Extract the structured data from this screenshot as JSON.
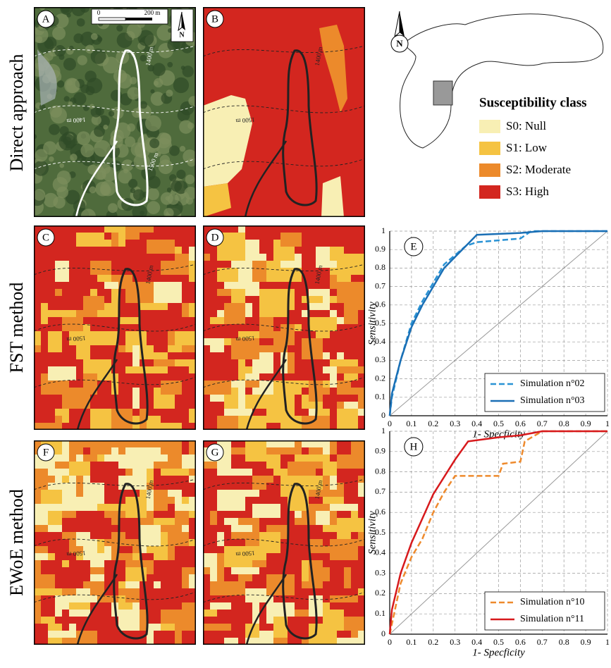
{
  "row_labels": [
    "Direct approach",
    "FST method",
    "EWoE method"
  ],
  "maps": [
    {
      "letter": "A",
      "contours": [
        "1400 m",
        "1400 m",
        "1500 m"
      ]
    },
    {
      "letter": "B",
      "contours": [
        "1400 m",
        "1500 m"
      ]
    },
    {
      "letter": "C",
      "contours": [
        "1400 m",
        "1500 m"
      ]
    },
    {
      "letter": "D",
      "contours": [
        "1400 m",
        "1500 m"
      ]
    },
    {
      "letter": "F",
      "contours": [
        "1400 m",
        "1500 m"
      ]
    },
    {
      "letter": "G",
      "contours": [
        "1400 m",
        "1500 m"
      ]
    }
  ],
  "scale_bar": {
    "start": "0",
    "end": "200 m"
  },
  "north": "N",
  "locator_north": "N",
  "legend": {
    "title": "Susceptibility class",
    "items": [
      {
        "label": "S0: Null",
        "color": "#f8efb4"
      },
      {
        "label": "S1: Low",
        "color": "#f5c342"
      },
      {
        "label": "S2: Moderate",
        "color": "#ec8a2b"
      },
      {
        "label": "S3: High",
        "color": "#d3261f"
      }
    ]
  },
  "chart_data": [
    {
      "type": "line",
      "panel": "E",
      "xlabel": "1- Specficity",
      "ylabel": "Sensitivity",
      "xlim": [
        0,
        1
      ],
      "ylim": [
        0,
        1
      ],
      "xticks": [
        0,
        0.1,
        0.2,
        0.3,
        0.4,
        0.5,
        0.6,
        0.7,
        0.8,
        0.9,
        1
      ],
      "yticks": [
        0,
        0.1,
        0.2,
        0.3,
        0.4,
        0.5,
        0.6,
        0.7,
        0.8,
        0.9,
        1
      ],
      "grid": true,
      "legend": "lower right",
      "series": [
        {
          "name": "Simulation n°02",
          "color": "#2a93d5",
          "style": "dashed",
          "x": [
            0,
            0.01,
            0.05,
            0.1,
            0.15,
            0.2,
            0.25,
            0.3,
            0.35,
            0.4,
            0.5,
            0.6,
            0.65,
            1
          ],
          "values": [
            0,
            0.1,
            0.3,
            0.5,
            0.62,
            0.72,
            0.82,
            0.87,
            0.92,
            0.94,
            0.95,
            0.96,
            1,
            1
          ]
        },
        {
          "name": "Simulation n°03",
          "color": "#1a6fb5",
          "style": "solid",
          "x": [
            0,
            0.01,
            0.05,
            0.1,
            0.15,
            0.2,
            0.25,
            0.3,
            0.35,
            0.4,
            0.6,
            0.7,
            1
          ],
          "values": [
            0,
            0.12,
            0.3,
            0.48,
            0.6,
            0.7,
            0.8,
            0.86,
            0.92,
            0.98,
            0.99,
            1,
            1
          ]
        }
      ]
    },
    {
      "type": "line",
      "panel": "H",
      "xlabel": "1- Specficity",
      "ylabel": "Sensitivity",
      "xlim": [
        0,
        1
      ],
      "ylim": [
        0,
        1
      ],
      "xticks": [
        0,
        0.1,
        0.2,
        0.3,
        0.4,
        0.5,
        0.6,
        0.7,
        0.8,
        0.9,
        1
      ],
      "yticks": [
        0,
        0.1,
        0.2,
        0.3,
        0.4,
        0.5,
        0.6,
        0.7,
        0.8,
        0.9,
        1
      ],
      "grid": true,
      "legend": "lower right",
      "series": [
        {
          "name": "Simulation n°10",
          "color": "#ee8a2d",
          "style": "dashed",
          "x": [
            0,
            0.02,
            0.05,
            0.1,
            0.15,
            0.2,
            0.25,
            0.3,
            0.5,
            0.52,
            0.6,
            0.62,
            0.7,
            1
          ],
          "values": [
            0,
            0.1,
            0.25,
            0.38,
            0.47,
            0.6,
            0.7,
            0.78,
            0.78,
            0.84,
            0.85,
            0.95,
            1,
            1
          ]
        },
        {
          "name": "Simulation n°11",
          "color": "#d7191c",
          "style": "solid",
          "x": [
            0,
            0.01,
            0.05,
            0.1,
            0.15,
            0.2,
            0.3,
            0.36,
            0.5,
            0.6,
            0.7,
            1
          ],
          "values": [
            0,
            0.12,
            0.3,
            0.45,
            0.57,
            0.69,
            0.86,
            0.95,
            0.97,
            0.98,
            1,
            1
          ]
        }
      ]
    }
  ]
}
